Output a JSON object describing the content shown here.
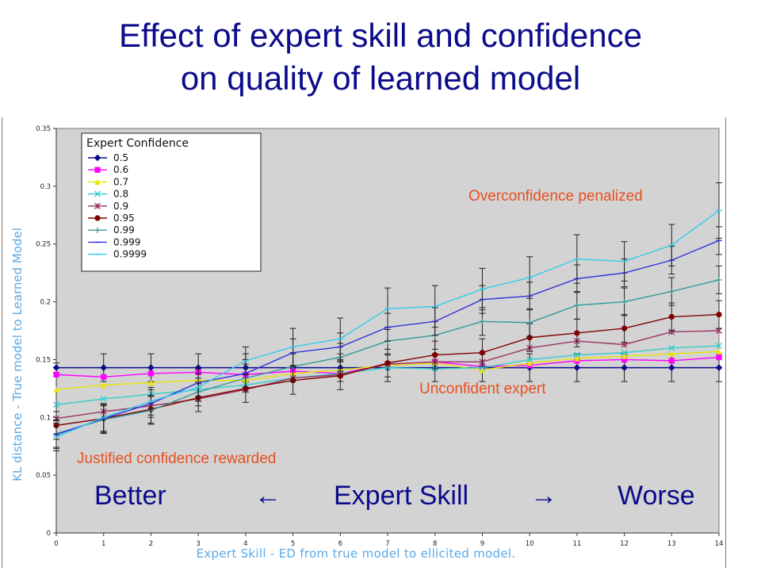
{
  "title_line1": "Effect of expert skill and confidence",
  "title_line2": "on quality of learned model",
  "chart_data": {
    "type": "line",
    "title": "",
    "xlabel": "Expert Skill - ED from true model to ellicited model.",
    "ylabel": "KL distance - True model to Learned Model",
    "xlim": [
      0,
      14
    ],
    "ylim": [
      0,
      0.35
    ],
    "x_ticks": [
      "0",
      "1",
      "2",
      "3",
      "4",
      "5",
      "6",
      "7",
      "8",
      "9",
      "10",
      "11",
      "12",
      "13",
      "14"
    ],
    "y_ticks": [
      "0",
      "0.05",
      "0.1",
      "0.15",
      "0.2",
      "0.25",
      "0.3",
      "0.35"
    ],
    "grid": false,
    "legend_title": "Expert Confidence",
    "legend_position": "top-left",
    "x": [
      0,
      1,
      2,
      3,
      4,
      5,
      6,
      7,
      8,
      9,
      10,
      11,
      12,
      13,
      14
    ],
    "series": [
      {
        "name": "0.5",
        "color": "#0b0b8c",
        "marker": "diamond",
        "values": [
          0.143,
          0.143,
          0.143,
          0.143,
          0.143,
          0.143,
          0.143,
          0.143,
          0.143,
          0.143,
          0.143,
          0.143,
          0.143,
          0.143,
          0.143
        ],
        "error": [
          0.004,
          0.012,
          0.012,
          0.012,
          0.012,
          0.012,
          0.012,
          0.012,
          0.012,
          0.012,
          0.012,
          0.012,
          0.012,
          0.012,
          0.012
        ]
      },
      {
        "name": "0.6",
        "color": "#ff00ff",
        "marker": "square",
        "values": [
          0.137,
          0.135,
          0.138,
          0.139,
          0.137,
          0.14,
          0.138,
          0.146,
          0.148,
          0.144,
          0.145,
          0.149,
          0.15,
          0.149,
          0.152
        ],
        "error": [
          0,
          0,
          0,
          0,
          0,
          0,
          0,
          0,
          0,
          0,
          0,
          0,
          0,
          0,
          0
        ]
      },
      {
        "name": "0.7",
        "color": "#e6e600",
        "marker": "triangle",
        "values": [
          0.124,
          0.128,
          0.13,
          0.132,
          0.132,
          0.138,
          0.141,
          0.145,
          0.147,
          0.141,
          0.147,
          0.151,
          0.153,
          0.155,
          0.157
        ],
        "error": [
          0,
          0,
          0,
          0,
          0,
          0,
          0,
          0,
          0,
          0,
          0,
          0,
          0,
          0,
          0
        ]
      },
      {
        "name": "0.8",
        "color": "#33cccc",
        "marker": "x",
        "values": [
          0.111,
          0.116,
          0.12,
          0.124,
          0.128,
          0.134,
          0.138,
          0.143,
          0.142,
          0.143,
          0.15,
          0.154,
          0.156,
          0.16,
          0.162
        ],
        "error": [
          0,
          0,
          0,
          0,
          0,
          0,
          0,
          0,
          0,
          0,
          0,
          0,
          0,
          0,
          0
        ]
      },
      {
        "name": "0.9",
        "color": "#993366",
        "marker": "star",
        "values": [
          0.099,
          0.105,
          0.11,
          0.116,
          0.124,
          0.134,
          0.137,
          0.146,
          0.148,
          0.148,
          0.16,
          0.166,
          0.163,
          0.174,
          0.175
        ],
        "error": [
          0,
          0,
          0,
          0,
          0,
          0,
          0,
          0,
          0,
          0,
          0,
          0,
          0,
          0,
          0
        ]
      },
      {
        "name": "0.95",
        "color": "#800000",
        "marker": "circle",
        "values": [
          0.093,
          0.099,
          0.107,
          0.117,
          0.125,
          0.132,
          0.136,
          0.147,
          0.154,
          0.156,
          0.169,
          0.173,
          0.177,
          0.187,
          0.189
        ],
        "error": [
          0.012,
          0.012,
          0.012,
          0.012,
          0.012,
          0.012,
          0.012,
          0.012,
          0.012,
          0.012,
          0.012,
          0.012,
          0.012,
          0.012,
          0.012
        ]
      },
      {
        "name": "0.99",
        "color": "#339999",
        "marker": "plus",
        "values": [
          0.086,
          0.098,
          0.106,
          0.122,
          0.134,
          0.144,
          0.152,
          0.166,
          0.171,
          0.183,
          0.182,
          0.197,
          0.2,
          0.209,
          0.219
        ],
        "error": [
          0.012,
          0.012,
          0.012,
          0.012,
          0.012,
          0.012,
          0.012,
          0.012,
          0.012,
          0.012,
          0.012,
          0.012,
          0.012,
          0.012,
          0.012
        ]
      },
      {
        "name": "0.999",
        "color": "#3333dd",
        "marker": "dash",
        "values": [
          0.085,
          0.099,
          0.112,
          0.13,
          0.138,
          0.156,
          0.161,
          0.178,
          0.183,
          0.202,
          0.205,
          0.22,
          0.225,
          0.236,
          0.253
        ],
        "error": [
          0.012,
          0.012,
          0.012,
          0.012,
          0.012,
          0.012,
          0.012,
          0.012,
          0.012,
          0.012,
          0.012,
          0.012,
          0.012,
          0.012,
          0.012
        ]
      },
      {
        "name": "0.9999",
        "color": "#33ccee",
        "marker": "dash",
        "values": [
          0.083,
          0.1,
          0.114,
          0.126,
          0.149,
          0.161,
          0.168,
          0.194,
          0.196,
          0.211,
          0.221,
          0.237,
          0.235,
          0.249,
          0.279
        ],
        "error": [
          0.012,
          0.012,
          0.012,
          0.012,
          0.012,
          0.016,
          0.018,
          0.018,
          0.018,
          0.018,
          0.018,
          0.021,
          0.017,
          0.018,
          0.024
        ]
      }
    ],
    "annotations": [
      {
        "text": "Overconfidence penalized"
      },
      {
        "text": "Unconfident expert"
      },
      {
        "text": "Justified confidence rewarded"
      }
    ]
  },
  "skill_axis": {
    "better": "Better",
    "left_arrow": "←",
    "label": "Expert Skill",
    "right_arrow": "→",
    "worse": "Worse"
  }
}
